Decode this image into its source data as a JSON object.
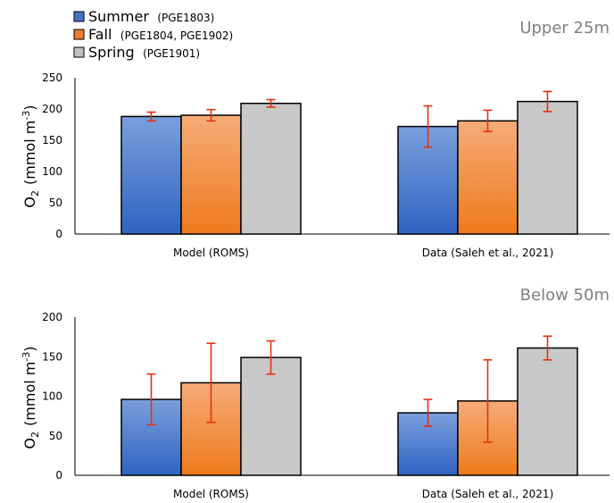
{
  "legend": [
    {
      "name": "Summer",
      "detail": "(PGE1803)",
      "color": "#4472c4"
    },
    {
      "name": "Fall",
      "detail": "(PGE1804, PGE1902)",
      "color": "#ed7d31"
    },
    {
      "name": "Spring",
      "detail": "(PGE1901)",
      "color": "#c0c0c0"
    }
  ],
  "ylabel": {
    "main": "O",
    "sub": "2",
    "unit_open": "(mmol m",
    "unit_sup": "-3",
    "unit_close": ")"
  },
  "errorbar_color": "#e8300c",
  "chart_data": [
    {
      "type": "bar",
      "title": "Upper 25m",
      "categories": [
        "Model (ROMS)",
        "Data (Saleh et al., 2021)"
      ],
      "series": [
        {
          "name": "Summer",
          "values": [
            188,
            172
          ],
          "errors": [
            7,
            33
          ]
        },
        {
          "name": "Fall",
          "values": [
            190,
            181
          ],
          "errors": [
            9,
            17
          ]
        },
        {
          "name": "Spring",
          "values": [
            209,
            212
          ],
          "errors": [
            6,
            16
          ]
        }
      ],
      "ylim": [
        0,
        250
      ],
      "yticks": [
        0,
        50,
        100,
        150,
        200,
        250
      ],
      "grid": false,
      "legend_position": "top-left"
    },
    {
      "type": "bar",
      "title": "Below 50m",
      "categories": [
        "Model (ROMS)",
        "Data (Saleh et al., 2021)"
      ],
      "series": [
        {
          "name": "Summer",
          "values": [
            96,
            79
          ],
          "errors": [
            32,
            17
          ]
        },
        {
          "name": "Fall",
          "values": [
            117,
            94
          ],
          "errors": [
            50,
            52
          ]
        },
        {
          "name": "Spring",
          "values": [
            149,
            161
          ],
          "errors": [
            21,
            15
          ]
        }
      ],
      "ylim": [
        0,
        200
      ],
      "yticks": [
        0,
        50,
        100,
        150,
        200
      ],
      "grid": false,
      "legend_position": "top-left"
    }
  ]
}
